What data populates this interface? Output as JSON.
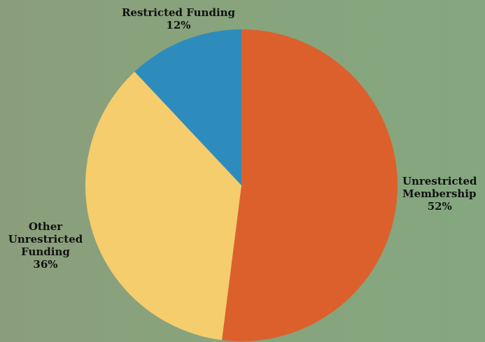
{
  "chart_data": {
    "type": "pie",
    "start_angle_deg": 0,
    "direction": "clockwise",
    "slices": [
      {
        "label": [
          "Unrestricted",
          "Membership"
        ],
        "value": 52,
        "percent_label": "52%",
        "color": "#dc602c"
      },
      {
        "label": [
          "Other",
          "Unrestricted",
          "Funding"
        ],
        "value": 36,
        "percent_label": "36%",
        "color": "#f5cd6d"
      },
      {
        "label": [
          "Restricted Funding"
        ],
        "value": 12,
        "percent_label": "12%",
        "color": "#2e8cbd"
      }
    ]
  }
}
